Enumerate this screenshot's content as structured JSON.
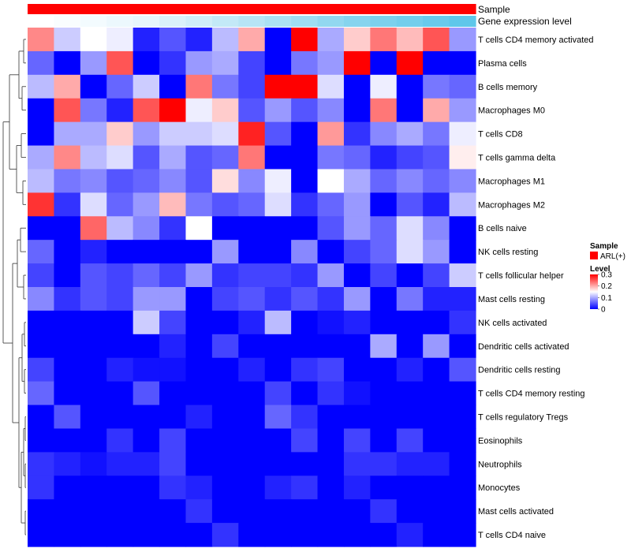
{
  "chart_data": {
    "type": "heatmap",
    "title": "",
    "rows": [
      "T cells CD4 memory activated",
      "Plasma cells",
      "B cells memory",
      "Macrophages M0",
      "T cells CD8",
      "T cells gamma delta",
      "Macrophages M1",
      "Macrophages M2",
      "B cells naive",
      "NK cells resting",
      "T cells follicular helper",
      "Mast cells resting",
      "NK cells activated",
      "Dendritic cells activated",
      "Dendritic cells resting",
      "T cells CD4 memory resting",
      "T cells regulatory  Tregs",
      "Eosinophils",
      "Neutrophils",
      "Monocytes",
      "Mast cells activated",
      "T cells CD4 naive"
    ],
    "values": [
      [
        0.22,
        0.12,
        0.15,
        0.14,
        0.02,
        0.05,
        0.02,
        0.11,
        0.2,
        0.0,
        0.3,
        0.1,
        0.18,
        0.23,
        0.19,
        0.25,
        0.09
      ],
      [
        0.06,
        0.0,
        0.09,
        0.25,
        0.0,
        0.03,
        0.09,
        0.1,
        0.04,
        0.0,
        0.07,
        0.09,
        0.3,
        0.0,
        0.3,
        0.0,
        0.0
      ],
      [
        0.11,
        0.2,
        0.0,
        0.06,
        0.12,
        0.0,
        0.23,
        0.07,
        0.04,
        0.3,
        0.3,
        0.13,
        0.0,
        0.14,
        0.0,
        0.07,
        0.06
      ],
      [
        0.0,
        0.25,
        0.07,
        0.02,
        0.25,
        0.3,
        0.14,
        0.18,
        0.05,
        0.09,
        0.05,
        0.08,
        0.0,
        0.23,
        0.0,
        0.2,
        0.09
      ],
      [
        0.0,
        0.1,
        0.1,
        0.18,
        0.09,
        0.12,
        0.12,
        0.13,
        0.28,
        0.05,
        0.0,
        0.21,
        0.03,
        0.08,
        0.1,
        0.07,
        0.14
      ],
      [
        0.1,
        0.22,
        0.11,
        0.13,
        0.05,
        0.1,
        0.05,
        0.06,
        0.23,
        0.0,
        0.0,
        0.07,
        0.06,
        0.02,
        0.04,
        0.05,
        0.16
      ],
      [
        0.11,
        0.07,
        0.08,
        0.05,
        0.06,
        0.08,
        0.05,
        0.17,
        0.08,
        0.14,
        0.0,
        0.15,
        0.1,
        0.06,
        0.08,
        0.06,
        0.08
      ],
      [
        0.27,
        0.03,
        0.13,
        0.06,
        0.09,
        0.19,
        0.07,
        0.05,
        0.06,
        0.13,
        0.03,
        0.06,
        0.09,
        0.0,
        0.05,
        0.02,
        0.11
      ],
      [
        0.0,
        0.0,
        0.24,
        0.11,
        0.08,
        0.03,
        0.15,
        0.0,
        0.0,
        0.0,
        0.0,
        0.05,
        0.09,
        0.06,
        0.13,
        0.08,
        0.0
      ],
      [
        0.06,
        0.0,
        0.02,
        0.0,
        0.0,
        0.0,
        0.0,
        0.09,
        0.0,
        0.0,
        0.08,
        0.0,
        0.04,
        0.06,
        0.13,
        0.09,
        0.0
      ],
      [
        0.04,
        0.0,
        0.05,
        0.04,
        0.06,
        0.04,
        0.09,
        0.03,
        0.04,
        0.04,
        0.03,
        0.09,
        0.0,
        0.04,
        0.0,
        0.04,
        0.12
      ],
      [
        0.08,
        0.03,
        0.05,
        0.04,
        0.09,
        0.09,
        0.0,
        0.04,
        0.05,
        0.03,
        0.05,
        0.03,
        0.09,
        0.0,
        0.07,
        0.02,
        0.02
      ],
      [
        0.0,
        0.0,
        0.0,
        0.0,
        0.12,
        0.04,
        0.0,
        0.0,
        0.02,
        0.11,
        0.0,
        0.01,
        0.02,
        0.0,
        0.0,
        0.0,
        0.03
      ],
      [
        0.0,
        0.0,
        0.0,
        0.0,
        0.0,
        0.02,
        0.0,
        0.04,
        0.0,
        0.0,
        0.0,
        0.0,
        0.0,
        0.1,
        0.0,
        0.09,
        0.0
      ],
      [
        0.04,
        0.0,
        0.0,
        0.02,
        0.01,
        0.01,
        0.0,
        0.0,
        0.02,
        0.0,
        0.03,
        0.04,
        0.0,
        0.0,
        0.02,
        0.0,
        0.05
      ],
      [
        0.06,
        0.0,
        0.0,
        0.0,
        0.05,
        0.0,
        0.0,
        0.0,
        0.0,
        0.04,
        0.0,
        0.03,
        0.01,
        0.0,
        0.0,
        0.0,
        0.0
      ],
      [
        0.0,
        0.05,
        0.0,
        0.0,
        0.0,
        0.0,
        0.02,
        0.0,
        0.0,
        0.06,
        0.03,
        0.0,
        0.0,
        0.0,
        0.0,
        0.0,
        0.0
      ],
      [
        0.0,
        0.0,
        0.0,
        0.03,
        0.0,
        0.04,
        0.0,
        0.0,
        0.0,
        0.0,
        0.04,
        0.0,
        0.04,
        0.0,
        0.04,
        0.0,
        0.0
      ],
      [
        0.03,
        0.02,
        0.01,
        0.02,
        0.02,
        0.04,
        0.0,
        0.0,
        0.0,
        0.0,
        0.0,
        0.0,
        0.03,
        0.03,
        0.02,
        0.02,
        0.0
      ],
      [
        0.03,
        0.0,
        0.0,
        0.0,
        0.0,
        0.03,
        0.02,
        0.0,
        0.0,
        0.02,
        0.03,
        0.0,
        0.02,
        0.0,
        0.0,
        0.0,
        0.0
      ],
      [
        0.0,
        0.0,
        0.0,
        0.0,
        0.0,
        0.0,
        0.03,
        0.0,
        0.0,
        0.0,
        0.0,
        0.0,
        0.0,
        0.03,
        0.0,
        0.0,
        0.0
      ],
      [
        0.0,
        0.0,
        0.0,
        0.0,
        0.0,
        0.0,
        0.0,
        0.03,
        0.0,
        0.0,
        0.0,
        0.0,
        0.0,
        0.0,
        0.02,
        0.0,
        0.0
      ]
    ],
    "range": [
      0,
      0.3
    ],
    "color_scale": {
      "low": "#0000ff",
      "mid": "#ffffff",
      "high": "#ff0000",
      "mid_value": 0.15
    },
    "column_annotations": [
      {
        "label": "Sample",
        "type": "categorical",
        "values_color": "#ff0000"
      },
      {
        "label": "Gene expression level",
        "type": "gradient",
        "colors": [
          "#ffffff",
          "#e6f6fc",
          "#b7e5f5",
          "#86d4ee",
          "#5fc7ea"
        ]
      }
    ],
    "legend": {
      "placement": "right",
      "sample": {
        "title": "Sample",
        "entries": [
          {
            "label": "ARL(+)",
            "color": "#ff0000"
          }
        ]
      },
      "level": {
        "title": "Level",
        "ticks": [
          0.3,
          0.2,
          0.1,
          0
        ]
      }
    }
  }
}
